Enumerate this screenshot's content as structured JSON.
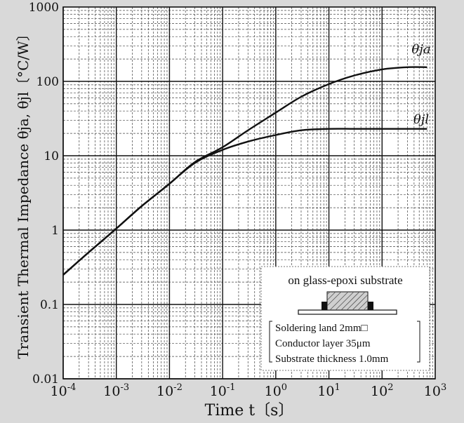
{
  "chart_data": {
    "type": "line",
    "xlabel": "Time t〔s〕",
    "ylabel": "Transient Thermal Impedance θja, θjl〔°C/W〕",
    "x_scale": "log",
    "y_scale": "log",
    "xlim": [
      0.0001,
      1000
    ],
    "ylim": [
      0.01,
      1000
    ],
    "grid": true,
    "x_ticks": [
      {
        "base": "10",
        "exp": "-4"
      },
      {
        "base": "10",
        "exp": "-3"
      },
      {
        "base": "10",
        "exp": "-2"
      },
      {
        "base": "10",
        "exp": "-1"
      },
      {
        "base": "10",
        "exp": "0"
      },
      {
        "base": "10",
        "exp": "1"
      },
      {
        "base": "10",
        "exp": "2"
      },
      {
        "base": "10",
        "exp": "3"
      }
    ],
    "y_ticks": [
      "0.01",
      "0.1",
      "1",
      "10",
      "100",
      "1000"
    ],
    "series": [
      {
        "name": "θja",
        "x": [
          0.0001,
          0.0003,
          0.001,
          0.003,
          0.01,
          0.03,
          0.1,
          0.3,
          1,
          3,
          10,
          30,
          100,
          300,
          700
        ],
        "y": [
          0.25,
          0.5,
          1.05,
          2.1,
          4.2,
          8.2,
          13,
          22,
          38,
          62,
          92,
          120,
          145,
          155,
          155
        ]
      },
      {
        "name": "θjl",
        "x": [
          0.0001,
          0.0003,
          0.001,
          0.003,
          0.01,
          0.03,
          0.1,
          0.3,
          1,
          3,
          10,
          30,
          100,
          300,
          700
        ],
        "y": [
          0.25,
          0.5,
          1.05,
          2.1,
          4.2,
          8.0,
          12,
          15.5,
          19,
          22,
          23,
          23,
          23,
          23,
          23
        ]
      }
    ],
    "annotation": {
      "title": "on glass-epoxi substrate",
      "lines": [
        "Soldering land 2mm□",
        "Conductor layer 35μm",
        "Substrate thickness 1.0mm"
      ]
    }
  }
}
